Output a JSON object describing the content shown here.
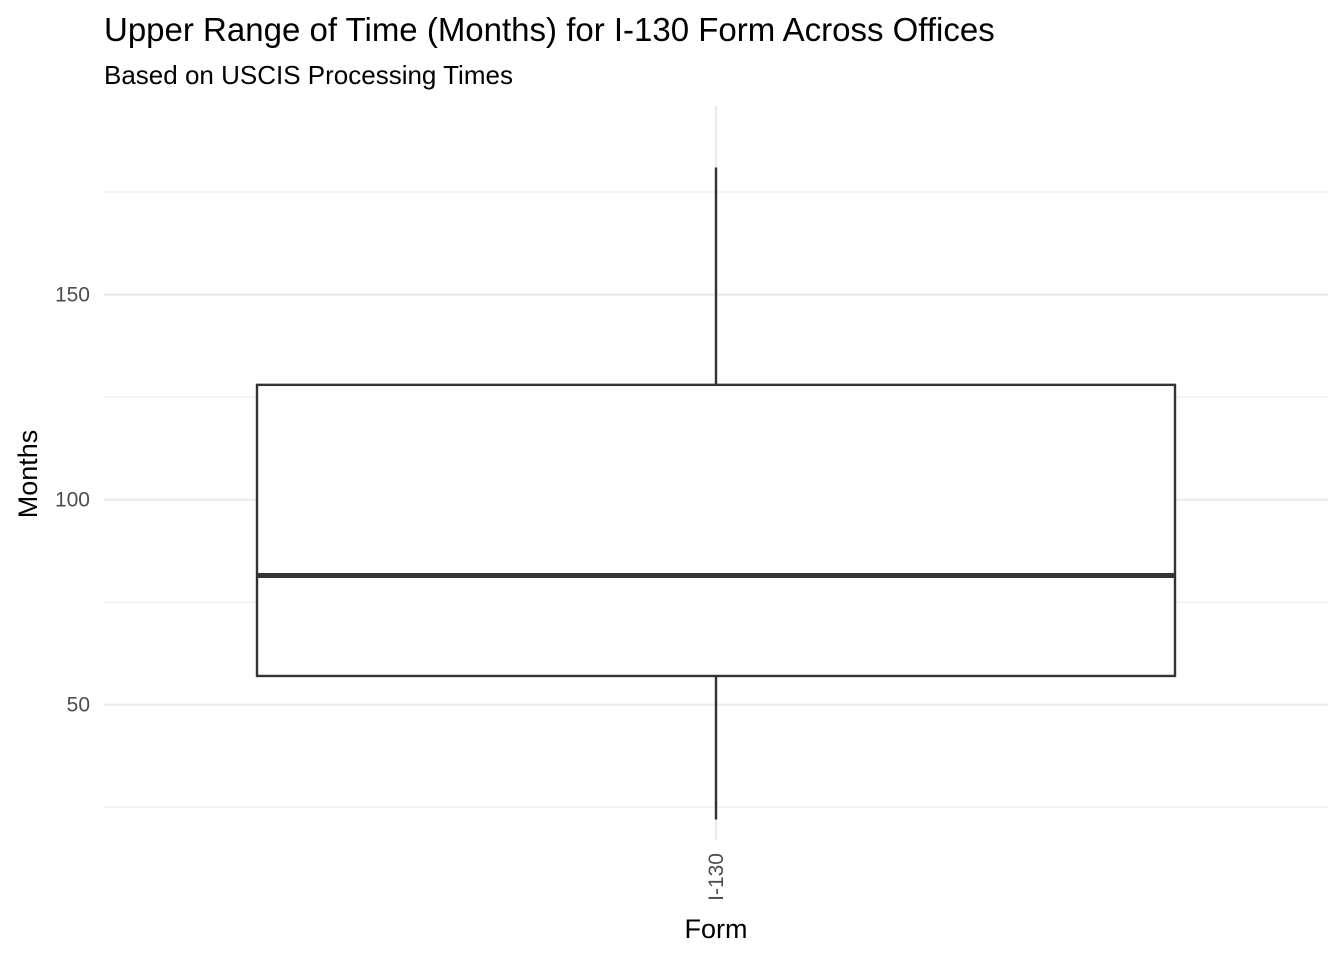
{
  "chart_data": {
    "type": "boxplot",
    "title": "Upper Range of Time (Months) for I-130 Form Across Offices",
    "subtitle": "Based on USCIS Processing Times",
    "xlabel": "Form",
    "ylabel": "Months",
    "categories": [
      "I-130"
    ],
    "boxes": [
      {
        "category": "I-130",
        "whisker_low": 22,
        "q1": 57,
        "median": 81.5,
        "q3": 128,
        "whisker_high": 181
      }
    ],
    "y_ticks": [
      50,
      100,
      150
    ],
    "ylim": [
      17,
      196
    ],
    "grid": true,
    "legend": "none"
  }
}
